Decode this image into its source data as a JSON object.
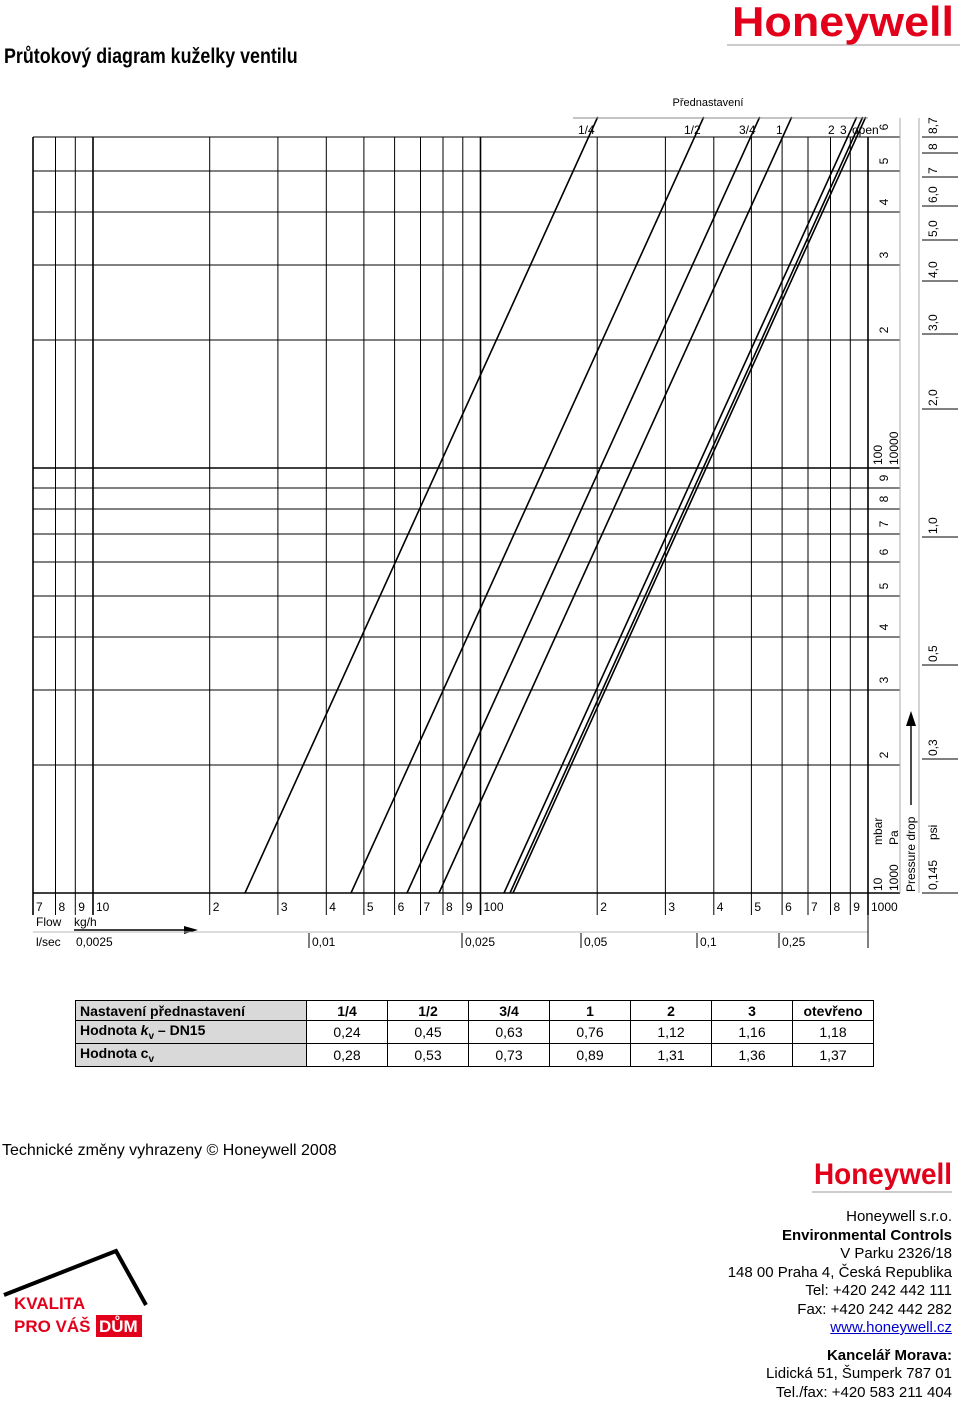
{
  "header": {
    "title": "Průtokový diagram kuželky ventilu",
    "logo": "Honeywell"
  },
  "diagram": {
    "presetting_title": "Přednastavení",
    "presetting_labels": [
      "1/4",
      "1/2",
      "3/4",
      "1",
      "2",
      "3",
      "open"
    ],
    "flow_label": "Flow",
    "kgh_unit": "kg/h",
    "kgh_ticks": [
      "7",
      "8",
      "9",
      "10",
      "2",
      "3",
      "4",
      "5",
      "6",
      "7",
      "8",
      "9",
      "100",
      "2",
      "3",
      "4",
      "5",
      "6",
      "7",
      "8",
      "9",
      "1000"
    ],
    "lsec_unit": "l/sec",
    "lsec_ticks": [
      "0,0025",
      "0,01",
      "0,025",
      "0,05",
      "0,1",
      "0,25"
    ],
    "mbar_ticks": [
      "2",
      "3",
      "4",
      "5",
      "6",
      "7",
      "8",
      "9",
      "2",
      "3",
      "4",
      "5",
      "6"
    ],
    "mbar_bottom": "10",
    "pa_bottom": "1000",
    "mbar_decade": "100",
    "pa_decade": "10000",
    "mbar_unit": "mbar",
    "pa_unit": "Pa",
    "pressure_label": "Pressure drop",
    "psi_ticks": [
      "0,145",
      "0,3",
      "0,5",
      "1,0",
      "2,0",
      "3,0",
      "4,0",
      "5,0",
      "6,0",
      "7",
      "8",
      "8,7"
    ],
    "psi_unit": "psi"
  },
  "table": {
    "header": [
      "Nastavení přednastavení",
      "1/4",
      "1/2",
      "3/4",
      "1",
      "2",
      "3",
      "otevřeno"
    ],
    "rows": [
      {
        "label_parts": [
          "Hodnota ",
          "k",
          "v",
          " – DN15"
        ],
        "values": [
          "0,24",
          "0,45",
          "0,63",
          "0,76",
          "1,12",
          "1,16",
          "1,18"
        ]
      },
      {
        "label_parts": [
          "Hodnota c",
          "v"
        ],
        "values": [
          "0,28",
          "0,53",
          "0,73",
          "0,89",
          "1,31",
          "1,36",
          "1,37"
        ]
      }
    ]
  },
  "footer": {
    "note": "Technické změny vyhrazeny © Honeywell 2008",
    "logo": "Honeywell",
    "address": [
      "Honeywell s.r.o.",
      "Environmental Controls",
      "V Parku 2326/18",
      "148 00 Praha 4, Česká Republika",
      "Tel: +420 242 442 111",
      "Fax: +420 242 442 282",
      "www.honeywell.cz"
    ],
    "office_title": "Kancelář Morava:",
    "office": [
      "Lidická 51, Šumperk 787 01",
      "Tel./fax: +420 583 211 404"
    ],
    "badge": [
      "KVALITA",
      "PRO VÁŠ",
      "DŮM"
    ]
  }
}
